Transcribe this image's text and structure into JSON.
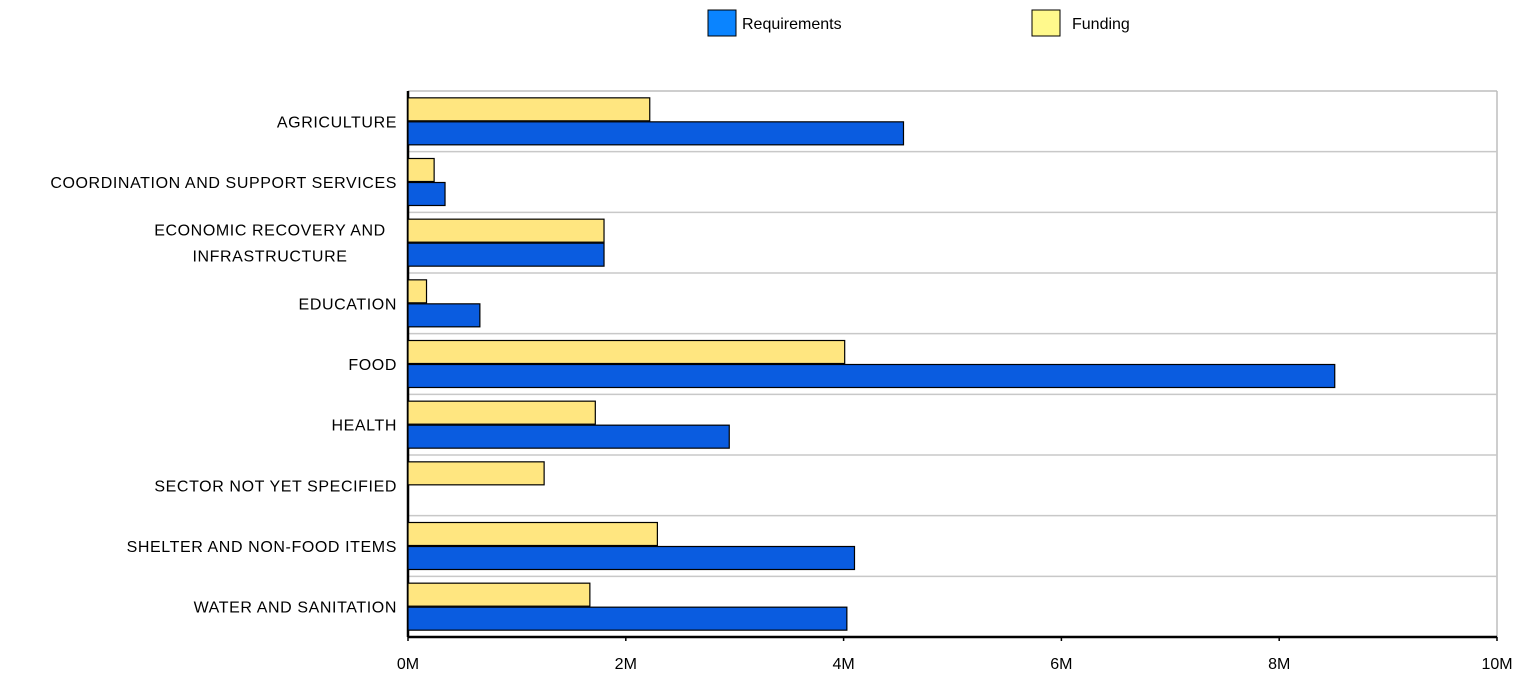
{
  "chart_data": {
    "type": "bar",
    "orientation": "horizontal",
    "categories": [
      [
        "AGRICULTURE"
      ],
      [
        "COORDINATION AND SUPPORT SERVICES"
      ],
      [
        "ECONOMIC RECOVERY AND",
        "INFRASTRUCTURE"
      ],
      [
        "EDUCATION"
      ],
      [
        "FOOD"
      ],
      [
        "HEALTH"
      ],
      [
        "SECTOR NOT YET SPECIFIED"
      ],
      [
        "SHELTER AND NON-FOOD ITEMS"
      ],
      [
        "WATER AND SANITATION"
      ]
    ],
    "series": [
      {
        "name": "Funding",
        "color": "#FFE680",
        "values": [
          2.22,
          0.24,
          1.8,
          0.17,
          4.01,
          1.72,
          1.25,
          2.29,
          1.67
        ]
      },
      {
        "name": "Requirements",
        "color": "#0A5CE0",
        "values": [
          4.55,
          0.34,
          1.8,
          0.66,
          8.51,
          2.95,
          0,
          4.1,
          4.03
        ]
      }
    ],
    "legend": {
      "position": "top",
      "items": [
        {
          "name": "Requirements",
          "color": "#0A84FF"
        },
        {
          "name": "Funding",
          "color": "#FFF98C"
        }
      ]
    },
    "xaxis": {
      "ticks": [
        0,
        2,
        4,
        6,
        8,
        10
      ],
      "tick_labels": [
        "0M",
        "2M",
        "4M",
        "6M",
        "8M",
        "10M"
      ],
      "range": [
        0,
        10
      ]
    },
    "grid": {
      "horizontal_separators": true,
      "vertical": false
    }
  }
}
